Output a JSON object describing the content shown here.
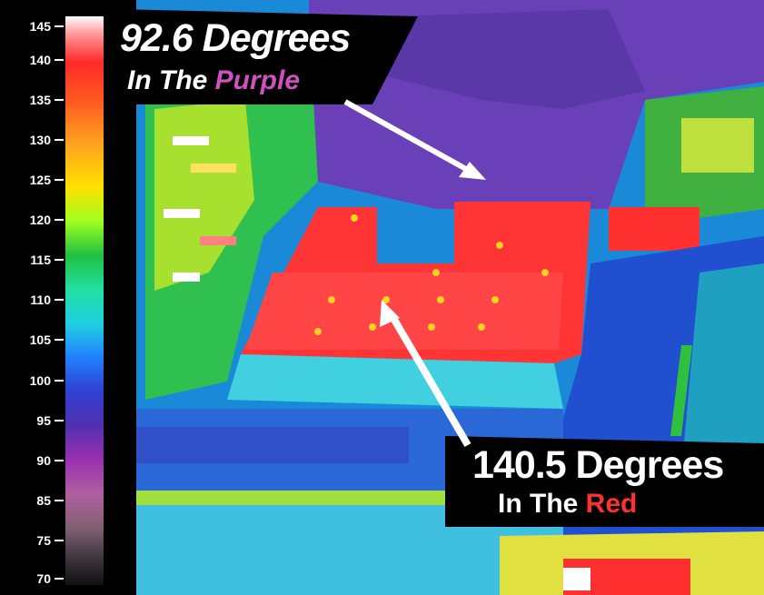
{
  "scale": {
    "ticks": [
      "145",
      "140",
      "135",
      "130",
      "125",
      "120",
      "115",
      "110",
      "105",
      "100",
      "95",
      "90",
      "85",
      "75",
      "70"
    ]
  },
  "callout_cool": {
    "value": "92.6 Degrees",
    "prefix": "In The ",
    "color_word": "Purple",
    "color": "#d050c0"
  },
  "callout_hot": {
    "value": "140.5 Degrees",
    "prefix": "In The ",
    "color_word": "Red",
    "color": "#ff3030"
  }
}
